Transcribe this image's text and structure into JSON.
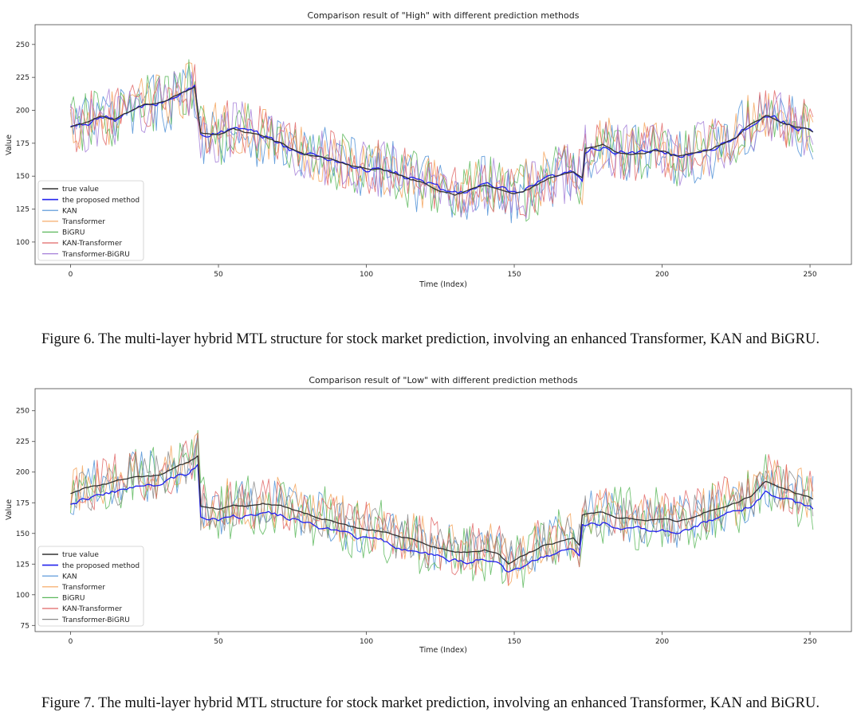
{
  "chart_data": [
    {
      "type": "line",
      "title": "Comparison result of \"High\" with different prediction methods",
      "xlabel": "Time (Index)",
      "ylabel": "Value",
      "xlim": [
        -12,
        264
      ],
      "ylim": [
        83,
        265
      ],
      "xticks": [
        0,
        50,
        100,
        150,
        200,
        250
      ],
      "yticks": [
        100,
        125,
        150,
        175,
        200,
        225,
        250
      ],
      "legend_position": "lower-left",
      "n_points": 252,
      "true_value_anchors": [
        [
          0,
          187
        ],
        [
          5,
          190
        ],
        [
          10,
          195
        ],
        [
          15,
          193
        ],
        [
          20,
          198
        ],
        [
          25,
          203
        ],
        [
          30,
          205
        ],
        [
          35,
          210
        ],
        [
          40,
          215
        ],
        [
          42,
          218
        ],
        [
          44,
          183
        ],
        [
          50,
          182
        ],
        [
          55,
          186
        ],
        [
          60,
          183
        ],
        [
          65,
          180
        ],
        [
          70,
          176
        ],
        [
          75,
          170
        ],
        [
          80,
          166
        ],
        [
          85,
          165
        ],
        [
          90,
          162
        ],
        [
          95,
          158
        ],
        [
          100,
          155
        ],
        [
          105,
          155
        ],
        [
          110,
          152
        ],
        [
          115,
          148
        ],
        [
          120,
          145
        ],
        [
          125,
          140
        ],
        [
          130,
          137
        ],
        [
          135,
          140
        ],
        [
          140,
          143
        ],
        [
          145,
          140
        ],
        [
          150,
          136
        ],
        [
          155,
          140
        ],
        [
          160,
          146
        ],
        [
          165,
          150
        ],
        [
          170,
          152
        ],
        [
          173,
          148
        ],
        [
          174,
          170
        ],
        [
          180,
          173
        ],
        [
          185,
          168
        ],
        [
          190,
          166
        ],
        [
          195,
          168
        ],
        [
          200,
          170
        ],
        [
          205,
          165
        ],
        [
          210,
          168
        ],
        [
          215,
          170
        ],
        [
          220,
          175
        ],
        [
          225,
          180
        ],
        [
          230,
          190
        ],
        [
          235,
          196
        ],
        [
          240,
          192
        ],
        [
          245,
          188
        ],
        [
          250,
          185
        ],
        [
          251,
          183
        ]
      ],
      "series": [
        {
          "name": "true value",
          "color": "#333333",
          "amplitude": 0,
          "offset": 0
        },
        {
          "name": "the proposed method",
          "color": "#2222ee",
          "amplitude": 5,
          "offset": 0
        },
        {
          "name": "KAN",
          "color": "#4c8fd6",
          "amplitude": 24,
          "offset": 0
        },
        {
          "name": "Transformer",
          "color": "#f5a35a",
          "amplitude": 22,
          "offset": 2
        },
        {
          "name": "BiGRU",
          "color": "#5cb85c",
          "amplitude": 24,
          "offset": 0
        },
        {
          "name": "KAN-Transformer",
          "color": "#e06666",
          "amplitude": 22,
          "offset": 1
        },
        {
          "name": "Transformer-BiGRU",
          "color": "#a57fd8",
          "amplitude": 23,
          "offset": 0
        }
      ]
    },
    {
      "type": "line",
      "title": "Comparison result of \"Low\" with different prediction methods",
      "xlabel": "Time (Index)",
      "ylabel": "Value",
      "xlim": [
        -12,
        264
      ],
      "ylim": [
        70,
        268
      ],
      "xticks": [
        0,
        50,
        100,
        150,
        200,
        250
      ],
      "yticks": [
        75,
        100,
        125,
        150,
        175,
        200,
        225,
        250
      ],
      "legend_position": "lower-left",
      "n_points": 252,
      "true_value_anchors": [
        [
          0,
          183
        ],
        [
          5,
          187
        ],
        [
          10,
          190
        ],
        [
          15,
          192
        ],
        [
          20,
          195
        ],
        [
          25,
          196
        ],
        [
          30,
          197
        ],
        [
          35,
          203
        ],
        [
          40,
          208
        ],
        [
          43,
          213
        ],
        [
          44,
          172
        ],
        [
          50,
          170
        ],
        [
          55,
          173
        ],
        [
          60,
          172
        ],
        [
          65,
          175
        ],
        [
          70,
          173
        ],
        [
          75,
          170
        ],
        [
          80,
          166
        ],
        [
          85,
          162
        ],
        [
          90,
          160
        ],
        [
          95,
          156
        ],
        [
          100,
          153
        ],
        [
          105,
          152
        ],
        [
          110,
          148
        ],
        [
          115,
          145
        ],
        [
          120,
          142
        ],
        [
          125,
          138
        ],
        [
          130,
          136
        ],
        [
          135,
          135
        ],
        [
          140,
          137
        ],
        [
          145,
          133
        ],
        [
          148,
          125
        ],
        [
          150,
          128
        ],
        [
          155,
          134
        ],
        [
          160,
          140
        ],
        [
          165,
          143
        ],
        [
          170,
          146
        ],
        [
          172,
          140
        ],
        [
          173,
          165
        ],
        [
          180,
          167
        ],
        [
          185,
          163
        ],
        [
          190,
          162
        ],
        [
          195,
          160
        ],
        [
          200,
          162
        ],
        [
          205,
          160
        ],
        [
          210,
          163
        ],
        [
          215,
          168
        ],
        [
          220,
          172
        ],
        [
          225,
          175
        ],
        [
          230,
          180
        ],
        [
          235,
          192
        ],
        [
          240,
          187
        ],
        [
          245,
          183
        ],
        [
          250,
          180
        ],
        [
          251,
          178
        ]
      ],
      "series": [
        {
          "name": "true value",
          "color": "#333333",
          "amplitude": 0,
          "offset": 0
        },
        {
          "name": "the proposed method",
          "color": "#2222ee",
          "amplitude": 4,
          "offset": -8
        },
        {
          "name": "KAN",
          "color": "#4c8fd6",
          "amplitude": 22,
          "offset": 0
        },
        {
          "name": "Transformer",
          "color": "#f5a35a",
          "amplitude": 21,
          "offset": 2
        },
        {
          "name": "BiGRU",
          "color": "#5cb85c",
          "amplitude": 27,
          "offset": 0
        },
        {
          "name": "KAN-Transformer",
          "color": "#e06666",
          "amplitude": 22,
          "offset": 2
        },
        {
          "name": "Transformer-BiGRU",
          "color": "#8a8a8a",
          "amplitude": 20,
          "offset": 0
        }
      ]
    }
  ],
  "captions": {
    "fig6": "Figure 6. The multi-layer hybrid MTL structure for stock market prediction, involving an enhanced Transformer, KAN and BiGRU.",
    "fig7": "Figure 7. The multi-layer hybrid MTL structure for stock market prediction, involving an enhanced Transformer, KAN and BiGRU."
  }
}
